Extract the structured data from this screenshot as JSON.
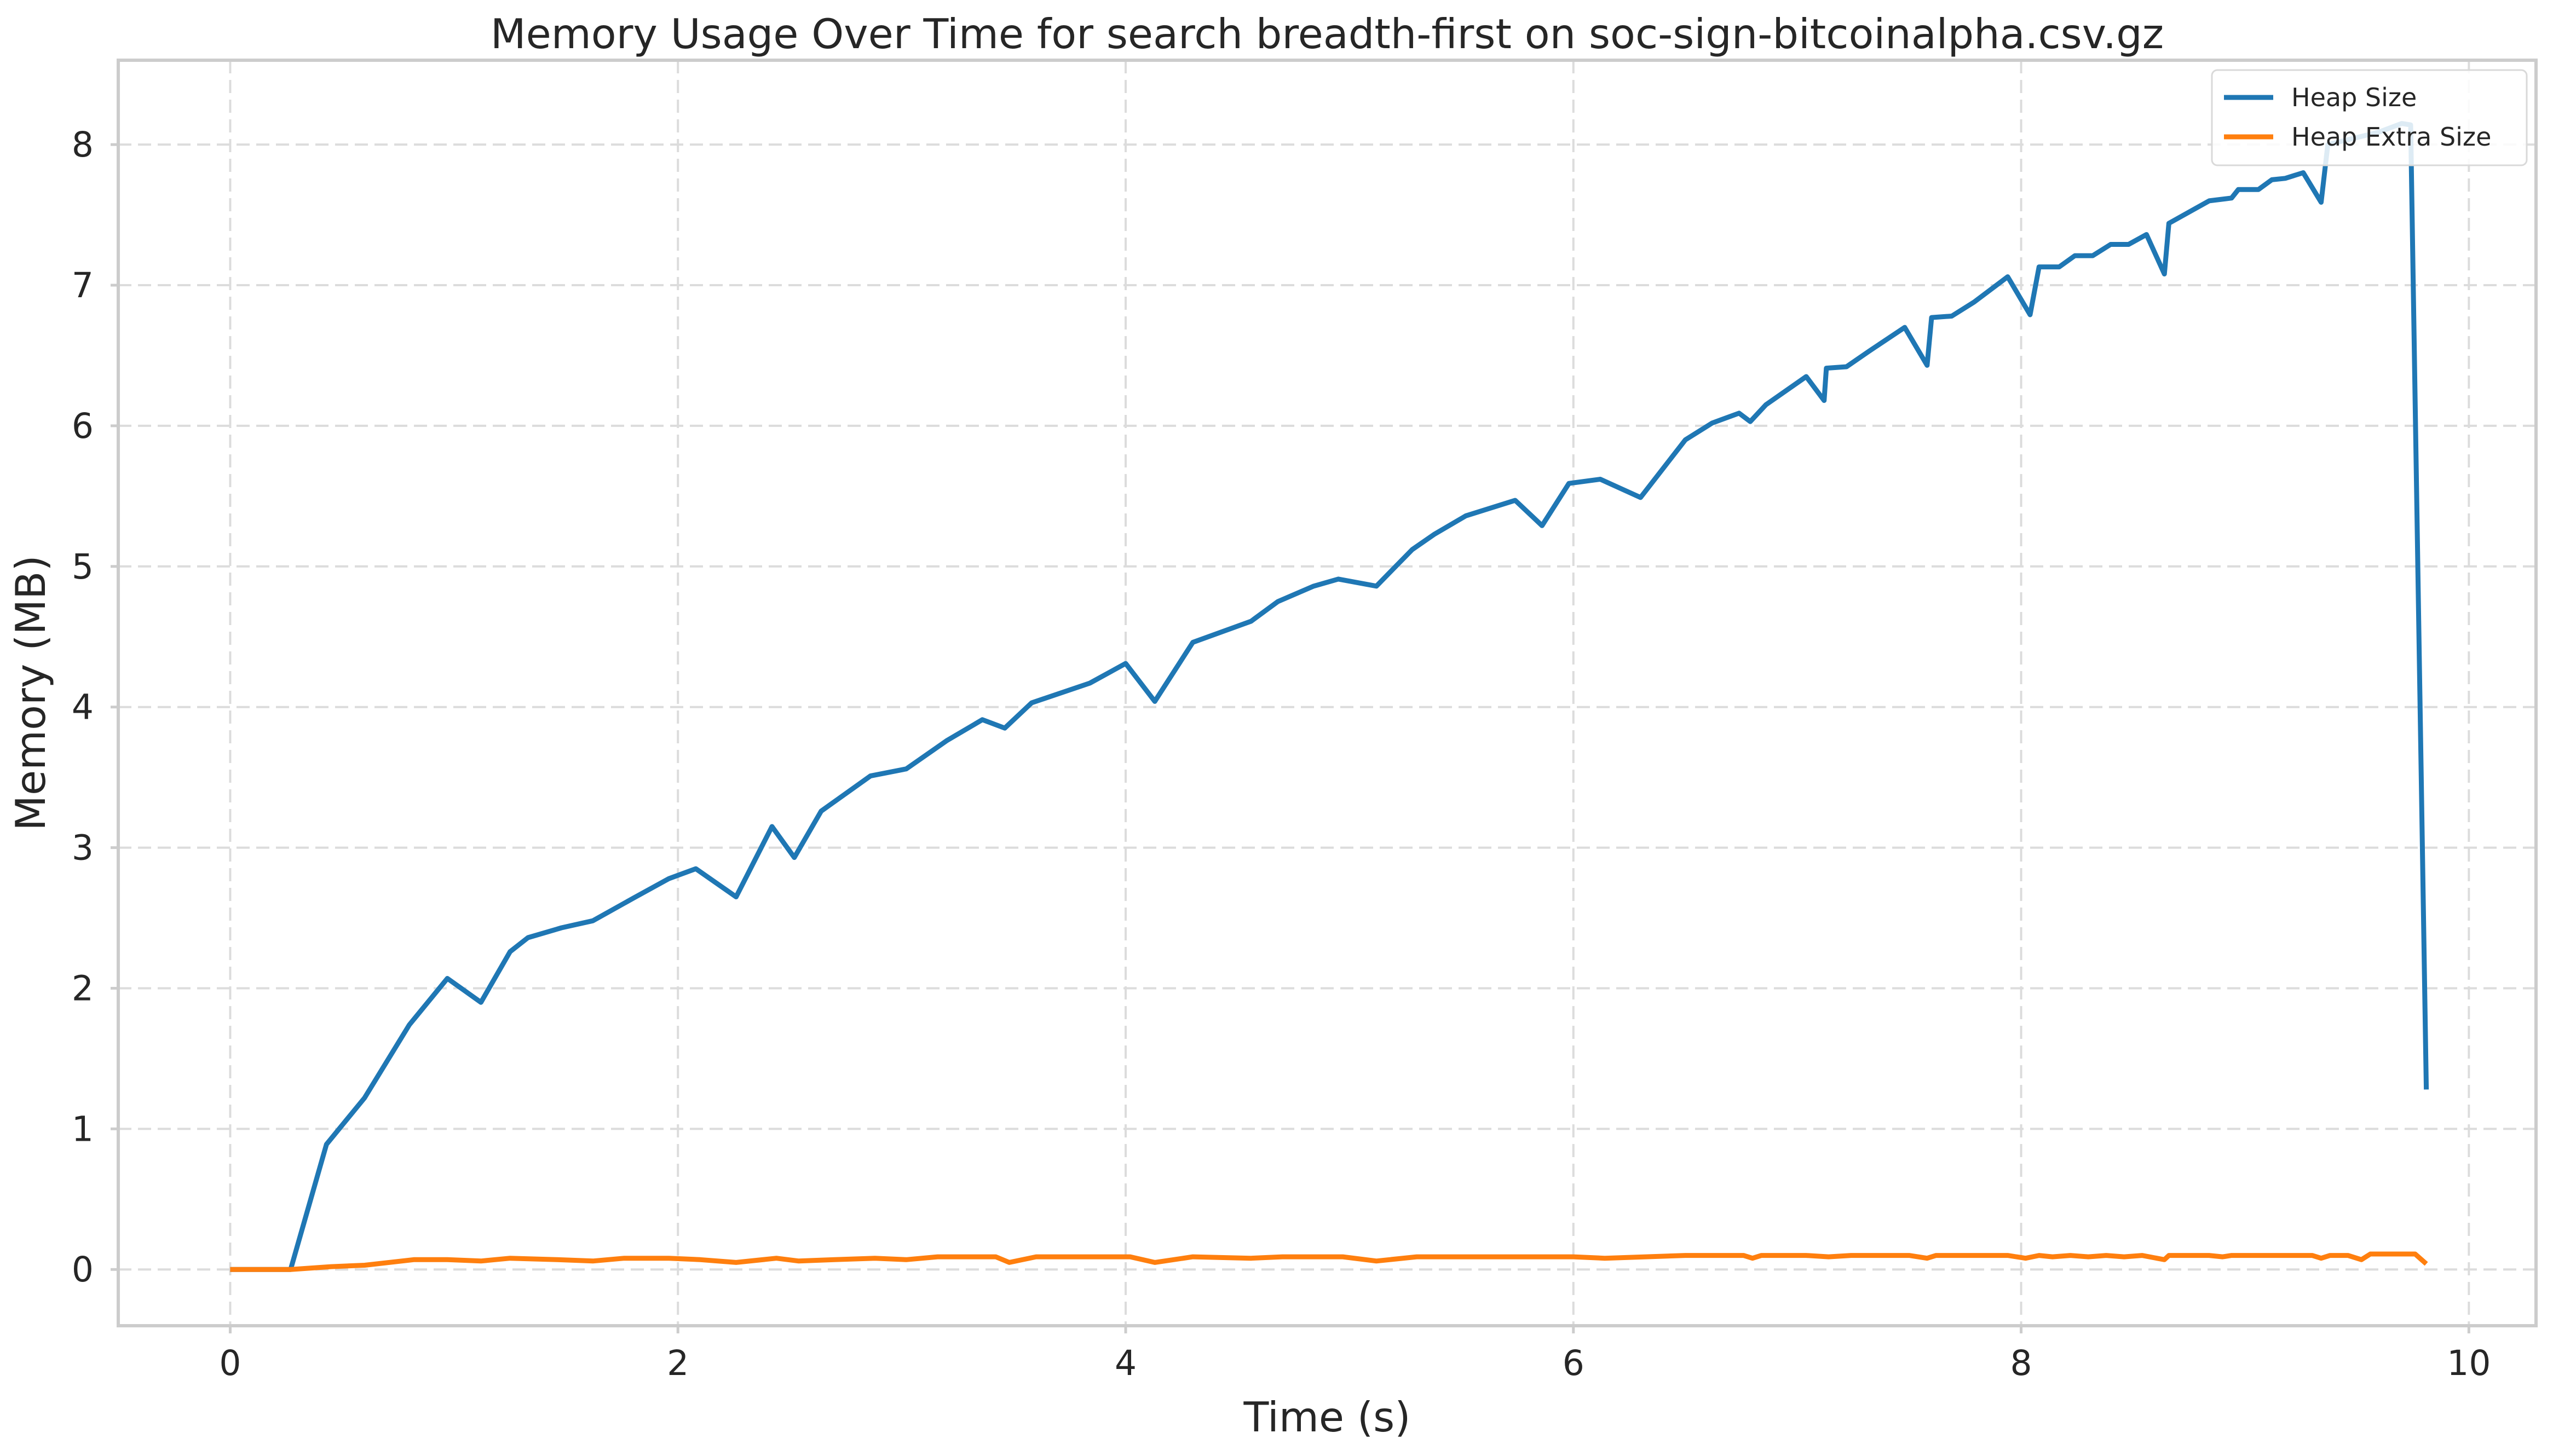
{
  "chart_data": {
    "type": "line",
    "title": "Memory Usage Over Time for search breadth-first on soc-sign-bitcoinalpha.csv.gz",
    "xlabel": "Time (s)",
    "ylabel": "Memory (MB)",
    "xlim": [
      -0.5,
      10.3
    ],
    "ylim": [
      -0.4,
      8.6
    ],
    "xticks": [
      0,
      2,
      4,
      6,
      8,
      10
    ],
    "yticks": [
      0,
      1,
      2,
      3,
      4,
      5,
      6,
      7,
      8
    ],
    "grid": true,
    "legend": {
      "position": "top-right"
    },
    "series": [
      {
        "name": "Heap Size",
        "color": "#1f77b4",
        "points": [
          [
            0.0,
            0.0
          ],
          [
            0.27,
            0.0
          ],
          [
            0.43,
            0.89
          ],
          [
            0.6,
            1.22
          ],
          [
            0.8,
            1.74
          ],
          [
            0.97,
            2.07
          ],
          [
            1.12,
            1.9
          ],
          [
            1.25,
            2.26
          ],
          [
            1.33,
            2.36
          ],
          [
            1.48,
            2.43
          ],
          [
            1.62,
            2.48
          ],
          [
            1.8,
            2.64
          ],
          [
            1.96,
            2.78
          ],
          [
            2.08,
            2.85
          ],
          [
            2.26,
            2.65
          ],
          [
            2.42,
            3.15
          ],
          [
            2.52,
            2.93
          ],
          [
            2.64,
            3.26
          ],
          [
            2.86,
            3.51
          ],
          [
            3.02,
            3.56
          ],
          [
            3.2,
            3.76
          ],
          [
            3.36,
            3.91
          ],
          [
            3.46,
            3.85
          ],
          [
            3.58,
            4.03
          ],
          [
            3.84,
            4.17
          ],
          [
            4.0,
            4.31
          ],
          [
            4.13,
            4.04
          ],
          [
            4.3,
            4.46
          ],
          [
            4.56,
            4.61
          ],
          [
            4.68,
            4.75
          ],
          [
            4.84,
            4.86
          ],
          [
            4.95,
            4.91
          ],
          [
            5.12,
            4.86
          ],
          [
            5.28,
            5.12
          ],
          [
            5.38,
            5.23
          ],
          [
            5.52,
            5.36
          ],
          [
            5.74,
            5.47
          ],
          [
            5.86,
            5.29
          ],
          [
            5.98,
            5.59
          ],
          [
            6.12,
            5.62
          ],
          [
            6.3,
            5.49
          ],
          [
            6.5,
            5.9
          ],
          [
            6.62,
            6.02
          ],
          [
            6.74,
            6.09
          ],
          [
            6.79,
            6.03
          ],
          [
            6.86,
            6.15
          ],
          [
            7.04,
            6.35
          ],
          [
            7.12,
            6.18
          ],
          [
            7.13,
            6.41
          ],
          [
            7.22,
            6.42
          ],
          [
            7.32,
            6.53
          ],
          [
            7.48,
            6.7
          ],
          [
            7.58,
            6.43
          ],
          [
            7.6,
            6.77
          ],
          [
            7.69,
            6.78
          ],
          [
            7.79,
            6.88
          ],
          [
            7.94,
            7.06
          ],
          [
            8.04,
            6.79
          ],
          [
            8.08,
            7.13
          ],
          [
            8.17,
            7.13
          ],
          [
            8.24,
            7.21
          ],
          [
            8.32,
            7.21
          ],
          [
            8.4,
            7.29
          ],
          [
            8.48,
            7.29
          ],
          [
            8.56,
            7.36
          ],
          [
            8.64,
            7.08
          ],
          [
            8.66,
            7.44
          ],
          [
            8.84,
            7.6
          ],
          [
            8.94,
            7.62
          ],
          [
            8.97,
            7.68
          ],
          [
            9.06,
            7.68
          ],
          [
            9.12,
            7.75
          ],
          [
            9.18,
            7.76
          ],
          [
            9.26,
            7.8
          ],
          [
            9.34,
            7.59
          ],
          [
            9.37,
            8.0
          ],
          [
            9.5,
            8.05
          ],
          [
            9.6,
            8.09
          ],
          [
            9.7,
            8.15
          ],
          [
            9.74,
            8.14
          ],
          [
            9.81,
            1.28
          ]
        ]
      },
      {
        "name": "Heap Extra Size",
        "color": "#ff7f0e",
        "points": [
          [
            0.0,
            0.0
          ],
          [
            0.27,
            0.0
          ],
          [
            0.45,
            0.02
          ],
          [
            0.6,
            0.03
          ],
          [
            0.82,
            0.07
          ],
          [
            0.97,
            0.07
          ],
          [
            1.12,
            0.06
          ],
          [
            1.25,
            0.08
          ],
          [
            1.46,
            0.07
          ],
          [
            1.62,
            0.06
          ],
          [
            1.76,
            0.08
          ],
          [
            1.96,
            0.08
          ],
          [
            2.1,
            0.07
          ],
          [
            2.26,
            0.05
          ],
          [
            2.44,
            0.08
          ],
          [
            2.54,
            0.06
          ],
          [
            2.7,
            0.07
          ],
          [
            2.88,
            0.08
          ],
          [
            3.02,
            0.07
          ],
          [
            3.16,
            0.09
          ],
          [
            3.42,
            0.09
          ],
          [
            3.48,
            0.05
          ],
          [
            3.6,
            0.09
          ],
          [
            3.94,
            0.09
          ],
          [
            4.02,
            0.09
          ],
          [
            4.13,
            0.05
          ],
          [
            4.3,
            0.09
          ],
          [
            4.56,
            0.08
          ],
          [
            4.7,
            0.09
          ],
          [
            4.97,
            0.09
          ],
          [
            5.12,
            0.06
          ],
          [
            5.3,
            0.09
          ],
          [
            5.76,
            0.09
          ],
          [
            5.88,
            0.09
          ],
          [
            6.0,
            0.09
          ],
          [
            6.14,
            0.08
          ],
          [
            6.5,
            0.1
          ],
          [
            6.76,
            0.1
          ],
          [
            6.8,
            0.08
          ],
          [
            6.84,
            0.1
          ],
          [
            7.04,
            0.1
          ],
          [
            7.14,
            0.09
          ],
          [
            7.24,
            0.1
          ],
          [
            7.5,
            0.1
          ],
          [
            7.58,
            0.08
          ],
          [
            7.62,
            0.1
          ],
          [
            7.72,
            0.1
          ],
          [
            7.94,
            0.1
          ],
          [
            8.02,
            0.08
          ],
          [
            8.08,
            0.1
          ],
          [
            8.14,
            0.09
          ],
          [
            8.22,
            0.1
          ],
          [
            8.3,
            0.09
          ],
          [
            8.38,
            0.1
          ],
          [
            8.46,
            0.09
          ],
          [
            8.54,
            0.1
          ],
          [
            8.64,
            0.07
          ],
          [
            8.66,
            0.1
          ],
          [
            8.84,
            0.1
          ],
          [
            8.9,
            0.09
          ],
          [
            8.94,
            0.1
          ],
          [
            9.0,
            0.1
          ],
          [
            9.06,
            0.1
          ],
          [
            9.3,
            0.1
          ],
          [
            9.34,
            0.08
          ],
          [
            9.38,
            0.1
          ],
          [
            9.46,
            0.1
          ],
          [
            9.52,
            0.07
          ],
          [
            9.56,
            0.11
          ],
          [
            9.76,
            0.11
          ],
          [
            9.81,
            0.04
          ]
        ]
      }
    ]
  }
}
